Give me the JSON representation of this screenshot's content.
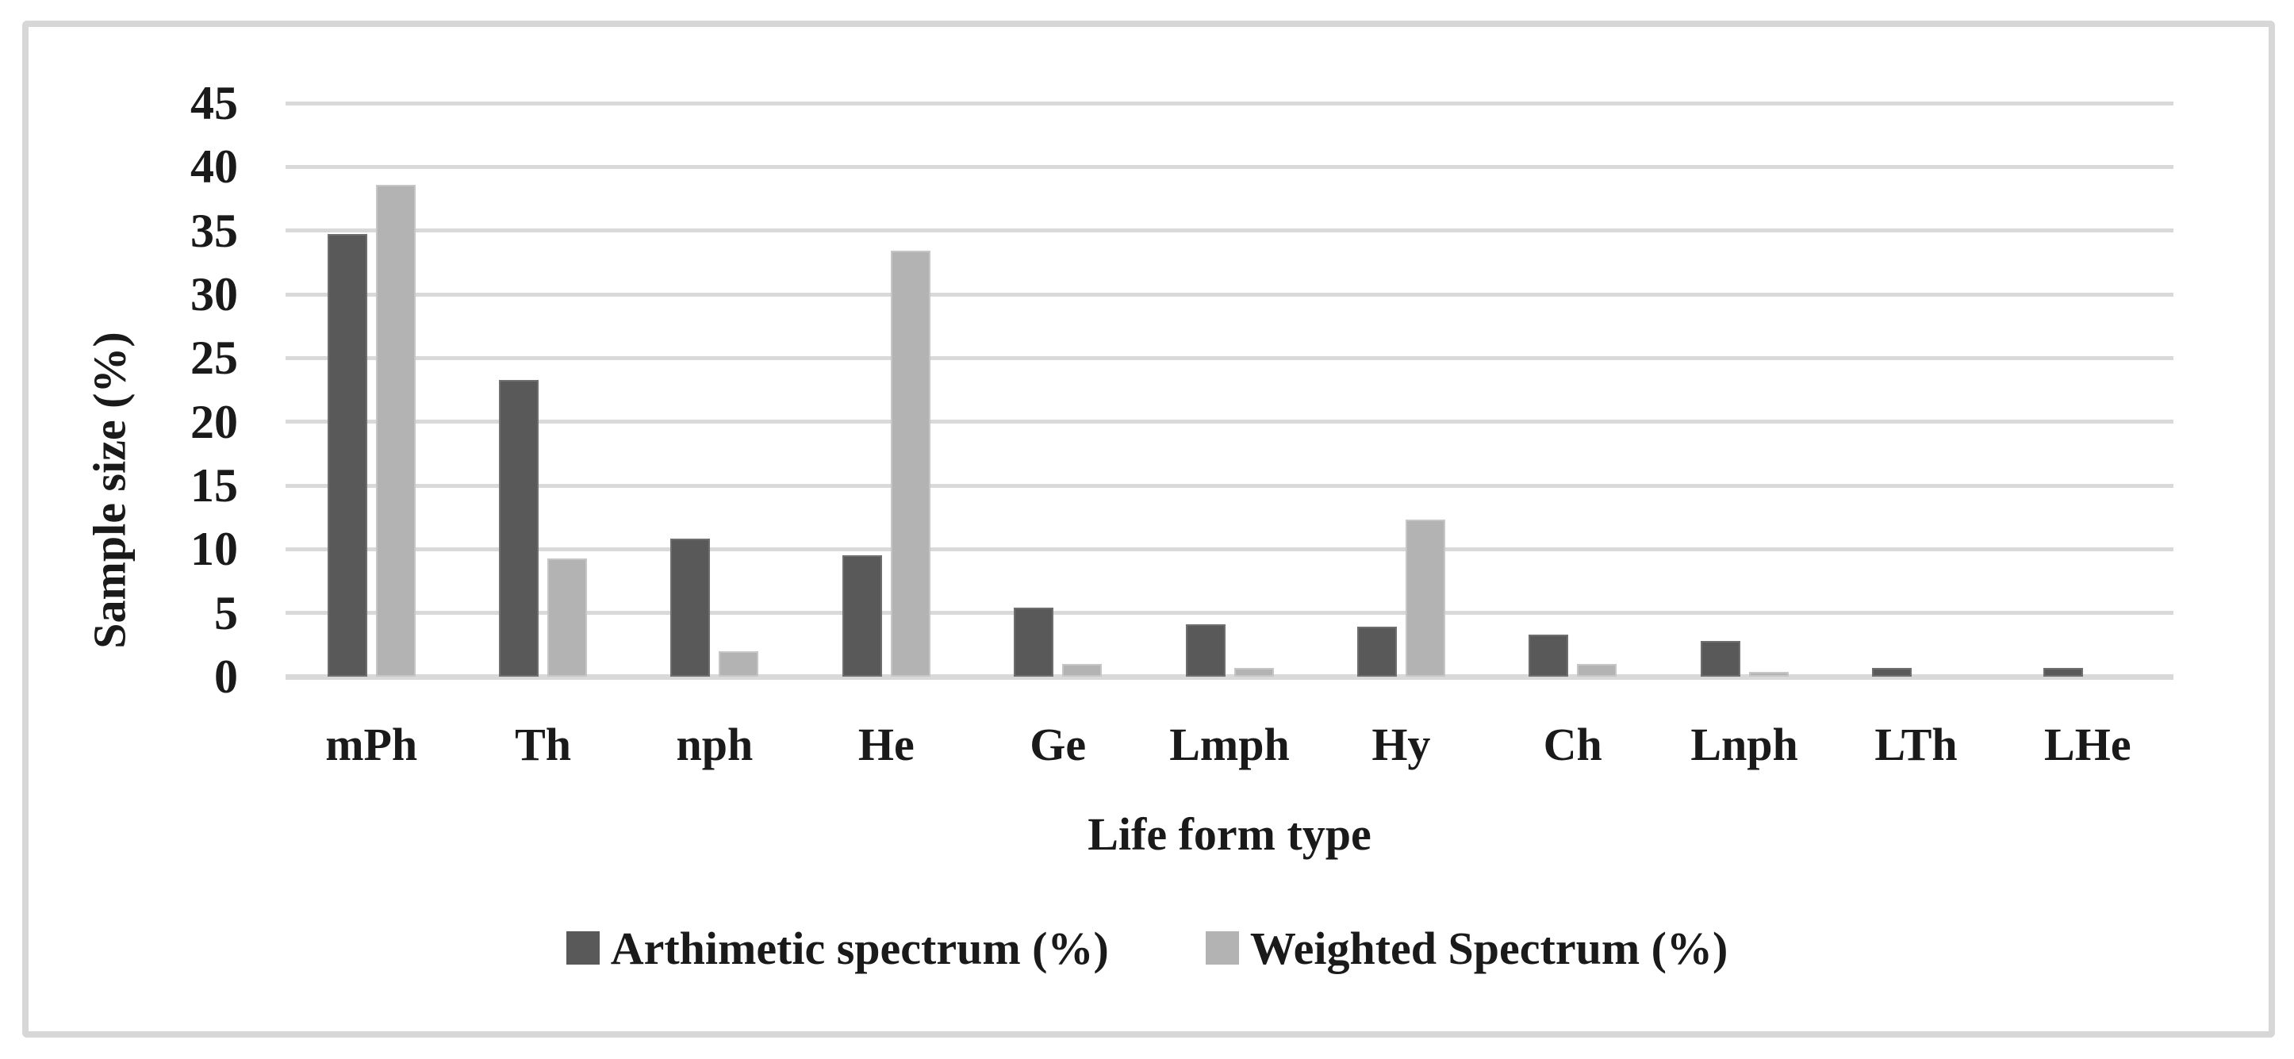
{
  "chart_data": {
    "type": "bar",
    "title": "",
    "categories": [
      "mPh",
      "Th",
      "nph",
      "He",
      "Ge",
      "Lmph",
      "Hy",
      "Ch",
      "Lnph",
      "LTh",
      "LHe"
    ],
    "series": [
      {
        "name": "Arthimetic spectrum (%)",
        "color": "#595959",
        "values": [
          34.7,
          23.3,
          10.8,
          9.5,
          5.4,
          4.1,
          3.9,
          3.3,
          2.8,
          0.7,
          0.7
        ]
      },
      {
        "name": "Weighted Spectrum (%)",
        "color": "#b3b3b3",
        "values": [
          38.6,
          9.3,
          2.0,
          33.4,
          1.0,
          0.7,
          12.3,
          1.0,
          0.4,
          0,
          0
        ]
      }
    ],
    "xlabel": "Life form type",
    "ylabel": "Sample size (%)",
    "ylim": [
      0,
      45
    ],
    "ytick_step": 5,
    "y_tick_labels": [
      "0",
      "5",
      "10",
      "15",
      "20",
      "25",
      "30",
      "35",
      "40",
      "45"
    ],
    "grid": true,
    "legend_position": "bottom",
    "gridline_color": "#d9d9d9",
    "frame_color": "#d7d7d7",
    "background": "#ffffff"
  }
}
